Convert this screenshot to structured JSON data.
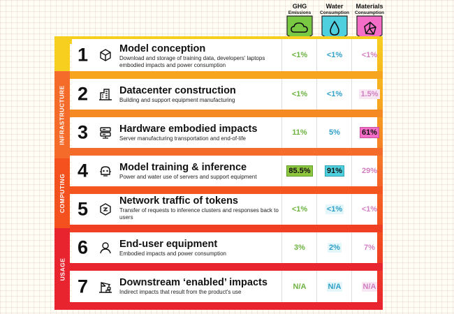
{
  "headers": [
    {
      "title": "GHG",
      "sub": "Emissions",
      "icon": "cloud-icon",
      "color": "#7ac943"
    },
    {
      "title": "Water",
      "sub": "Consumption",
      "icon": "droplet-icon",
      "color": "#4fd0de"
    },
    {
      "title": "Materials",
      "sub": "Consumption",
      "icon": "mineral-icon",
      "color": "#f46ec7"
    }
  ],
  "sections": [
    {
      "label": "INFRASTRUCTURE",
      "color": "#f56b2a"
    },
    {
      "label": "COMPUTING",
      "color": "#f4511e"
    },
    {
      "label": "USAGE",
      "color": "#e8252f"
    }
  ],
  "rows": [
    {
      "num": "1",
      "icon": "cube-icon",
      "title": "Model conception",
      "desc": "Download and storage of training data, developers' laptops embodied impacts and power consumption",
      "ghg": "<1%",
      "water": "<1%",
      "materials": "<1%"
    },
    {
      "num": "2",
      "icon": "building-icon",
      "title": "Datacenter construction",
      "desc": "Building and support equipment manufacturing",
      "ghg": "<1%",
      "water": "<1%",
      "materials": "1.5%"
    },
    {
      "num": "3",
      "icon": "server-icon",
      "title": "Hardware embodied impacts",
      "desc": "Server manufacturing transportation and end-of-life",
      "ghg": "11%",
      "water": "5%",
      "materials": "61%"
    },
    {
      "num": "4",
      "icon": "robot-icon",
      "title": "Model training & inference",
      "desc": "Power and water use of servers and support equipment",
      "ghg": "85.5%",
      "water": "91%",
      "materials": "29%"
    },
    {
      "num": "5",
      "icon": "network-icon",
      "title": "Network traffic of tokens",
      "desc": "Transfer of requests to inference clusters and responses back to users",
      "ghg": "<1%",
      "water": "<1%",
      "materials": "<1%"
    },
    {
      "num": "6",
      "icon": "user-icon",
      "title": "End-user equipment",
      "desc": "Embodied impacts and power consumption",
      "ghg": "3%",
      "water": "2%",
      "materials": "7%"
    },
    {
      "num": "7",
      "icon": "crane-icon",
      "title": "Downstream ‘enabled’ impacts",
      "desc": "Indirect impacts that result from the product's use",
      "ghg": "N/A",
      "water": "N/A",
      "materials": "N/A"
    }
  ]
}
